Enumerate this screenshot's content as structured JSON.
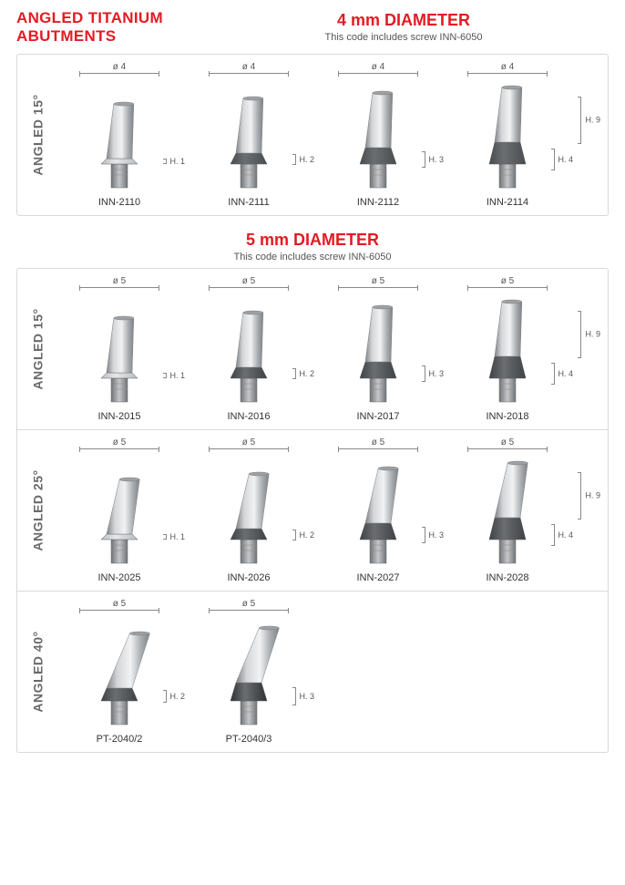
{
  "title_line1": "ANGLED TITANIUM",
  "title_line2": "ABUTMENTS",
  "sections": [
    {
      "header": "4 mm DIAMETER",
      "note": "This code includes screw INN-6050",
      "rows": [
        {
          "angle_label": "ANGLED 15°",
          "h9_label": "H. 9",
          "items": [
            {
              "dia": "ø 4",
              "h": "H. 1",
              "collar_h": 6,
              "tilt": 3,
              "code": "INN-2110",
              "collar_color": "#b9bcbf"
            },
            {
              "dia": "ø 4",
              "h": "H. 2",
              "collar_h": 12,
              "tilt": 3,
              "code": "INN-2111",
              "collar_color": "#4a4d50"
            },
            {
              "dia": "ø 4",
              "h": "H. 3",
              "collar_h": 18,
              "tilt": 3,
              "code": "INN-2112",
              "collar_color": "#4a4d50"
            },
            {
              "dia": "ø 4",
              "h": "H. 4",
              "collar_h": 24,
              "tilt": 3,
              "code": "INN-2114",
              "collar_color": "#4a4d50"
            }
          ]
        }
      ]
    },
    {
      "header": "5 mm DIAMETER",
      "note": "This code includes screw INN-6050",
      "rows": [
        {
          "angle_label": "ANGLED 15°",
          "h9_label": "H. 9",
          "items": [
            {
              "dia": "ø 5",
              "h": "H. 1",
              "collar_h": 6,
              "tilt": 3,
              "code": "INN-2015",
              "collar_color": "#b9bcbf"
            },
            {
              "dia": "ø 5",
              "h": "H. 2",
              "collar_h": 12,
              "tilt": 3,
              "code": "INN-2016",
              "collar_color": "#3f4245"
            },
            {
              "dia": "ø 5",
              "h": "H. 3",
              "collar_h": 18,
              "tilt": 3,
              "code": "INN-2017",
              "collar_color": "#3f4245"
            },
            {
              "dia": "ø 5",
              "h": "H. 4",
              "collar_h": 24,
              "tilt": 3,
              "code": "INN-2018",
              "collar_color": "#3f4245"
            }
          ]
        },
        {
          "angle_label": "ANGLED 25°",
          "h9_label": "H. 9",
          "items": [
            {
              "dia": "ø 5",
              "h": "H. 1",
              "collar_h": 6,
              "tilt": 7,
              "code": "INN-2025",
              "collar_color": "#b9bcbf"
            },
            {
              "dia": "ø 5",
              "h": "H. 2",
              "collar_h": 12,
              "tilt": 7,
              "code": "INN-2026",
              "collar_color": "#3f4245"
            },
            {
              "dia": "ø 5",
              "h": "H. 3",
              "collar_h": 18,
              "tilt": 7,
              "code": "INN-2027",
              "collar_color": "#3f4245"
            },
            {
              "dia": "ø 5",
              "h": "H. 4",
              "collar_h": 24,
              "tilt": 7,
              "code": "INN-2028",
              "collar_color": "#3f4245"
            }
          ]
        },
        {
          "angle_label": "ANGLED 40°",
          "h9_label": null,
          "items": [
            {
              "dia": "ø 5",
              "h": "H. 2",
              "collar_h": 14,
              "tilt": 14,
              "code": "PT-2040/2",
              "collar_color": "#3f4245"
            },
            {
              "dia": "ø 5",
              "h": "H. 3",
              "collar_h": 20,
              "tilt": 14,
              "code": "PT-2040/3",
              "collar_color": "#2f3234"
            }
          ]
        }
      ]
    }
  ],
  "colors": {
    "accent": "#e31b23",
    "metal_light": "#d4d6d8",
    "metal_mid": "#a9adb0",
    "metal_dark": "#7f8386",
    "hex_color": "#8c8f92"
  }
}
